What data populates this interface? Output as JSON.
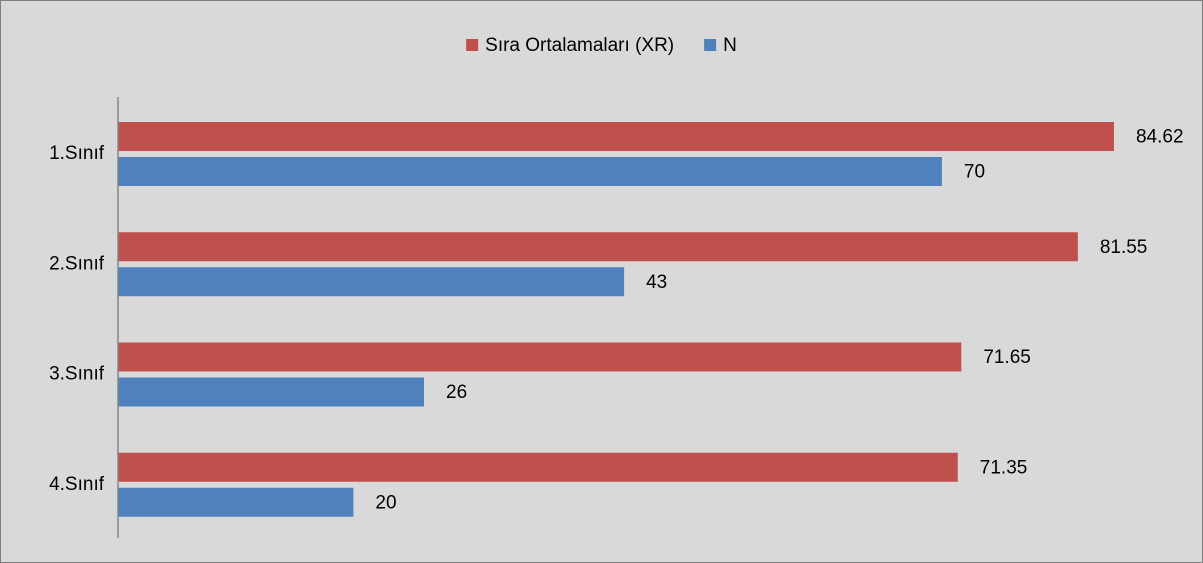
{
  "chart_data": {
    "type": "bar",
    "orientation": "horizontal",
    "categories": [
      "1.Sınıf",
      "2.Sınıf",
      "3.Sınıf",
      "4.Sınıf"
    ],
    "series": [
      {
        "name": "Sıra Ortalamaları (XR)",
        "color": "#c0504d",
        "values": [
          84.62,
          81.55,
          71.65,
          71.35
        ]
      },
      {
        "name": "N",
        "color": "#4f81bd",
        "values": [
          70,
          43,
          26,
          20
        ]
      }
    ],
    "xlim": [
      0,
      90
    ],
    "legend": "top"
  }
}
